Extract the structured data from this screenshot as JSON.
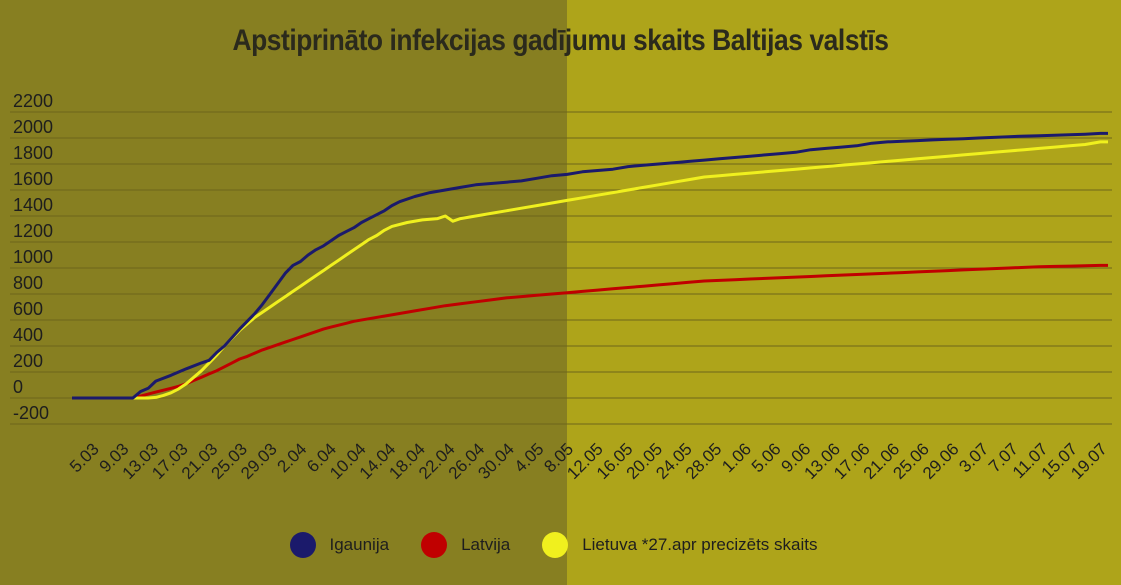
{
  "chart_data": {
    "type": "line",
    "title": "Apstiprināto infekcijas gadījumu skaits Baltijas valstīs",
    "ylim": [
      -200,
      2200
    ],
    "yticks": [
      2200,
      2000,
      1800,
      1600,
      1400,
      1200,
      1000,
      800,
      600,
      400,
      200,
      0,
      -200
    ],
    "x_ticks": [
      "5.03",
      "9.03",
      "13.03",
      "17.03",
      "21.03",
      "25.03",
      "29.03",
      "2.04",
      "6.04",
      "10.04",
      "14.04",
      "18.04",
      "22.04",
      "26.04",
      "30.04",
      "4.05",
      "8.05",
      "12.05",
      "16.05",
      "20.05",
      "24.05",
      "28.05",
      "1.06",
      "5.06",
      "9.06",
      "13.06",
      "17.06",
      "21.06",
      "25.06",
      "29.06",
      "3.07",
      "7.07",
      "11.07",
      "15.07",
      "19.07"
    ],
    "colors": {
      "Igaunija": "#1b1a6b",
      "Latvija": "#c00000",
      "Lietuva": "#f0f01e"
    },
    "series": [
      {
        "name": "Igaunija",
        "key": "est",
        "color": "#1b1a6b",
        "points": [
          [
            0,
            0
          ],
          [
            8,
            0
          ],
          [
            9,
            50
          ],
          [
            10,
            75
          ],
          [
            11,
            130
          ],
          [
            13,
            175
          ],
          [
            15,
            225
          ],
          [
            17,
            270
          ],
          [
            18,
            290
          ],
          [
            19,
            350
          ],
          [
            20,
            400
          ],
          [
            21,
            465
          ],
          [
            22,
            530
          ],
          [
            23,
            590
          ],
          [
            24,
            650
          ],
          [
            25,
            720
          ],
          [
            26,
            800
          ],
          [
            27,
            880
          ],
          [
            28,
            960
          ],
          [
            29,
            1020
          ],
          [
            30,
            1050
          ],
          [
            31,
            1100
          ],
          [
            32,
            1140
          ],
          [
            33,
            1170
          ],
          [
            34,
            1210
          ],
          [
            35,
            1250
          ],
          [
            36,
            1280
          ],
          [
            37,
            1310
          ],
          [
            38,
            1350
          ],
          [
            39,
            1380
          ],
          [
            40,
            1410
          ],
          [
            41,
            1440
          ],
          [
            42,
            1480
          ],
          [
            43,
            1510
          ],
          [
            45,
            1550
          ],
          [
            47,
            1580
          ],
          [
            49,
            1600
          ],
          [
            51,
            1620
          ],
          [
            53,
            1640
          ],
          [
            55,
            1650
          ],
          [
            57,
            1660
          ],
          [
            59,
            1670
          ],
          [
            61,
            1690
          ],
          [
            63,
            1710
          ],
          [
            65,
            1720
          ],
          [
            67,
            1740
          ],
          [
            69,
            1750
          ],
          [
            71,
            1760
          ],
          [
            73,
            1780
          ],
          [
            75,
            1790
          ],
          [
            77,
            1800
          ],
          [
            79,
            1810
          ],
          [
            81,
            1820
          ],
          [
            83,
            1830
          ],
          [
            85,
            1840
          ],
          [
            87,
            1850
          ],
          [
            89,
            1860
          ],
          [
            91,
            1870
          ],
          [
            93,
            1880
          ],
          [
            95,
            1890
          ],
          [
            97,
            1910
          ],
          [
            99,
            1920
          ],
          [
            101,
            1930
          ],
          [
            103,
            1940
          ],
          [
            105,
            1960
          ],
          [
            107,
            1970
          ],
          [
            109,
            1975
          ],
          [
            111,
            1980
          ],
          [
            113,
            1985
          ],
          [
            115,
            1990
          ],
          [
            117,
            1995
          ],
          [
            119,
            2000
          ],
          [
            121,
            2005
          ],
          [
            123,
            2010
          ],
          [
            125,
            2015
          ],
          [
            127,
            2018
          ],
          [
            129,
            2021
          ],
          [
            131,
            2025
          ],
          [
            133,
            2029
          ],
          [
            135,
            2035
          ],
          [
            136,
            2035
          ]
        ]
      },
      {
        "name": "Latvija",
        "key": "lat",
        "color": "#c00000",
        "points": [
          [
            0,
            0
          ],
          [
            8,
            0
          ],
          [
            9,
            15
          ],
          [
            10,
            30
          ],
          [
            11,
            45
          ],
          [
            12,
            60
          ],
          [
            13,
            75
          ],
          [
            14,
            90
          ],
          [
            15,
            110
          ],
          [
            16,
            135
          ],
          [
            17,
            160
          ],
          [
            18,
            185
          ],
          [
            19,
            210
          ],
          [
            20,
            240
          ],
          [
            21,
            270
          ],
          [
            22,
            300
          ],
          [
            23,
            320
          ],
          [
            24,
            345
          ],
          [
            25,
            370
          ],
          [
            26,
            390
          ],
          [
            27,
            410
          ],
          [
            28,
            430
          ],
          [
            29,
            450
          ],
          [
            30,
            470
          ],
          [
            31,
            490
          ],
          [
            32,
            510
          ],
          [
            33,
            530
          ],
          [
            34,
            545
          ],
          [
            35,
            560
          ],
          [
            36,
            575
          ],
          [
            37,
            590
          ],
          [
            39,
            610
          ],
          [
            41,
            630
          ],
          [
            43,
            650
          ],
          [
            45,
            670
          ],
          [
            47,
            690
          ],
          [
            49,
            710
          ],
          [
            51,
            725
          ],
          [
            53,
            740
          ],
          [
            55,
            755
          ],
          [
            57,
            770
          ],
          [
            59,
            780
          ],
          [
            61,
            790
          ],
          [
            63,
            800
          ],
          [
            65,
            810
          ],
          [
            67,
            820
          ],
          [
            69,
            830
          ],
          [
            71,
            840
          ],
          [
            73,
            850
          ],
          [
            75,
            860
          ],
          [
            77,
            870
          ],
          [
            79,
            880
          ],
          [
            81,
            890
          ],
          [
            83,
            900
          ],
          [
            85,
            905
          ],
          [
            87,
            910
          ],
          [
            89,
            915
          ],
          [
            91,
            920
          ],
          [
            93,
            925
          ],
          [
            95,
            930
          ],
          [
            97,
            935
          ],
          [
            99,
            940
          ],
          [
            101,
            945
          ],
          [
            103,
            950
          ],
          [
            105,
            955
          ],
          [
            107,
            960
          ],
          [
            109,
            965
          ],
          [
            111,
            970
          ],
          [
            113,
            975
          ],
          [
            115,
            980
          ],
          [
            117,
            985
          ],
          [
            119,
            990
          ],
          [
            121,
            995
          ],
          [
            123,
            1000
          ],
          [
            125,
            1005
          ],
          [
            127,
            1010
          ],
          [
            129,
            1012
          ],
          [
            131,
            1015
          ],
          [
            133,
            1018
          ],
          [
            135,
            1020
          ],
          [
            136,
            1020
          ]
        ]
      },
      {
        "name": "Lietuva *27.apr precizēts skaits",
        "key": "lit",
        "color": "#f0f01e",
        "points": [
          [
            0,
            0
          ],
          [
            10,
            0
          ],
          [
            11,
            5
          ],
          [
            12,
            20
          ],
          [
            13,
            40
          ],
          [
            14,
            70
          ],
          [
            15,
            110
          ],
          [
            16,
            160
          ],
          [
            17,
            210
          ],
          [
            18,
            270
          ],
          [
            19,
            330
          ],
          [
            20,
            400
          ],
          [
            21,
            460
          ],
          [
            22,
            520
          ],
          [
            23,
            570
          ],
          [
            24,
            620
          ],
          [
            25,
            660
          ],
          [
            26,
            700
          ],
          [
            27,
            740
          ],
          [
            28,
            780
          ],
          [
            29,
            820
          ],
          [
            30,
            860
          ],
          [
            31,
            900
          ],
          [
            32,
            940
          ],
          [
            33,
            980
          ],
          [
            34,
            1020
          ],
          [
            35,
            1060
          ],
          [
            36,
            1100
          ],
          [
            37,
            1140
          ],
          [
            38,
            1180
          ],
          [
            39,
            1220
          ],
          [
            40,
            1250
          ],
          [
            41,
            1290
          ],
          [
            42,
            1320
          ],
          [
            44,
            1350
          ],
          [
            46,
            1370
          ],
          [
            48,
            1380
          ],
          [
            49,
            1400
          ],
          [
            50,
            1360
          ],
          [
            51,
            1380
          ],
          [
            53,
            1400
          ],
          [
            55,
            1420
          ],
          [
            57,
            1440
          ],
          [
            59,
            1460
          ],
          [
            61,
            1480
          ],
          [
            63,
            1500
          ],
          [
            65,
            1520
          ],
          [
            67,
            1540
          ],
          [
            69,
            1560
          ],
          [
            71,
            1580
          ],
          [
            73,
            1600
          ],
          [
            75,
            1620
          ],
          [
            77,
            1640
          ],
          [
            79,
            1660
          ],
          [
            81,
            1680
          ],
          [
            83,
            1700
          ],
          [
            85,
            1710
          ],
          [
            87,
            1720
          ],
          [
            89,
            1730
          ],
          [
            91,
            1740
          ],
          [
            93,
            1750
          ],
          [
            95,
            1760
          ],
          [
            97,
            1770
          ],
          [
            99,
            1780
          ],
          [
            101,
            1790
          ],
          [
            103,
            1800
          ],
          [
            105,
            1810
          ],
          [
            107,
            1820
          ],
          [
            109,
            1830
          ],
          [
            111,
            1840
          ],
          [
            113,
            1850
          ],
          [
            115,
            1860
          ],
          [
            117,
            1870
          ],
          [
            119,
            1880
          ],
          [
            121,
            1890
          ],
          [
            123,
            1900
          ],
          [
            125,
            1910
          ],
          [
            127,
            1920
          ],
          [
            129,
            1930
          ],
          [
            131,
            1940
          ],
          [
            133,
            1950
          ],
          [
            135,
            1970
          ],
          [
            136,
            1970
          ]
        ]
      }
    ]
  },
  "legend": [
    {
      "label": "Igaunija",
      "color": "#1b1a6b"
    },
    {
      "label": "Latvija",
      "color": "#c00000"
    },
    {
      "label": "Lietuva *27.apr precizēts skaits",
      "color": "#f0f01e"
    }
  ]
}
